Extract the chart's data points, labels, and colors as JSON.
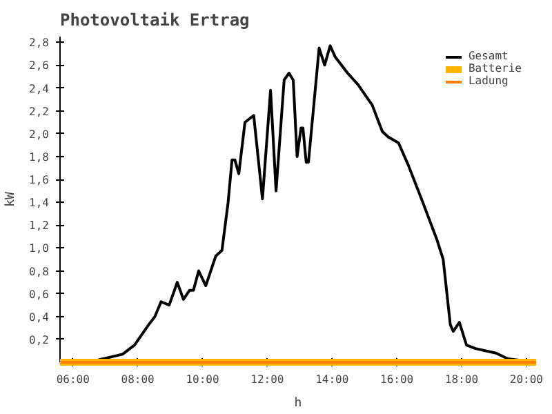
{
  "chart_data": {
    "type": "line",
    "title": "Photovoltaik Ertrag",
    "xlabel": "h",
    "ylabel": "kW",
    "xlim": [
      5.6,
      20.3
    ],
    "ylim": [
      0,
      2.85
    ],
    "xticks": [
      {
        "value": 6,
        "label": "06:00"
      },
      {
        "value": 8,
        "label": "08:00"
      },
      {
        "value": 10,
        "label": "10:00"
      },
      {
        "value": 12,
        "label": "12:00"
      },
      {
        "value": 14,
        "label": "14:00"
      },
      {
        "value": 16,
        "label": "16:00"
      },
      {
        "value": 18,
        "label": "18:00"
      },
      {
        "value": 20,
        "label": "20:00"
      }
    ],
    "yticks": [
      {
        "value": 0.2,
        "label": "0,2"
      },
      {
        "value": 0.4,
        "label": "0,4"
      },
      {
        "value": 0.6,
        "label": "0,6"
      },
      {
        "value": 0.8,
        "label": "0,8"
      },
      {
        "value": 1.0,
        "label": "1,0"
      },
      {
        "value": 1.2,
        "label": "1,2"
      },
      {
        "value": 1.4,
        "label": "1,4"
      },
      {
        "value": 1.6,
        "label": "1,6"
      },
      {
        "value": 1.8,
        "label": "1,8"
      },
      {
        "value": 2.0,
        "label": "2,0"
      },
      {
        "value": 2.2,
        "label": "2,2"
      },
      {
        "value": 2.4,
        "label": "2,4"
      },
      {
        "value": 2.6,
        "label": "2,6"
      },
      {
        "value": 2.8,
        "label": "2,8"
      }
    ],
    "grid": false,
    "legend": "top right",
    "marker": "none",
    "line_style": "solid",
    "series": [
      {
        "name": "Gesamt",
        "color": "#000000",
        "x": [
          6.78,
          7.53,
          7.9,
          8.34,
          8.53,
          8.72,
          8.97,
          9.22,
          9.41,
          9.6,
          9.72,
          9.88,
          10.1,
          10.41,
          10.6,
          10.79,
          10.91,
          11.0,
          11.12,
          11.31,
          11.58,
          11.85,
          12.1,
          12.27,
          12.52,
          12.67,
          12.8,
          12.92,
          13.04,
          13.1,
          13.2,
          13.27,
          13.6,
          13.77,
          13.94,
          14.1,
          14.48,
          14.8,
          15.24,
          15.55,
          15.74,
          16.05,
          16.36,
          16.8,
          17.24,
          17.43,
          17.65,
          17.74,
          17.93,
          18.15,
          18.43,
          19.06,
          19.43,
          19.98
        ],
        "values": [
          0.02,
          0.07,
          0.15,
          0.33,
          0.4,
          0.53,
          0.5,
          0.7,
          0.55,
          0.63,
          0.63,
          0.8,
          0.67,
          0.93,
          0.98,
          1.4,
          1.77,
          1.77,
          1.65,
          2.1,
          2.16,
          1.43,
          2.38,
          1.5,
          2.47,
          2.53,
          2.47,
          1.8,
          2.05,
          2.05,
          1.75,
          1.75,
          2.75,
          2.6,
          2.77,
          2.67,
          2.53,
          2.43,
          2.25,
          2.02,
          1.97,
          1.92,
          1.72,
          1.4,
          1.07,
          0.9,
          0.33,
          0.27,
          0.35,
          0.15,
          0.12,
          0.08,
          0.03,
          0.01
        ]
      },
      {
        "name": "Batterie",
        "color": "#ffb400",
        "x": [
          5.6,
          20.3
        ],
        "values": [
          0,
          0
        ]
      },
      {
        "name": "Ladung",
        "color": "#ff8000",
        "x": [
          5.6,
          20.3
        ],
        "values": [
          0,
          0
        ]
      }
    ]
  }
}
